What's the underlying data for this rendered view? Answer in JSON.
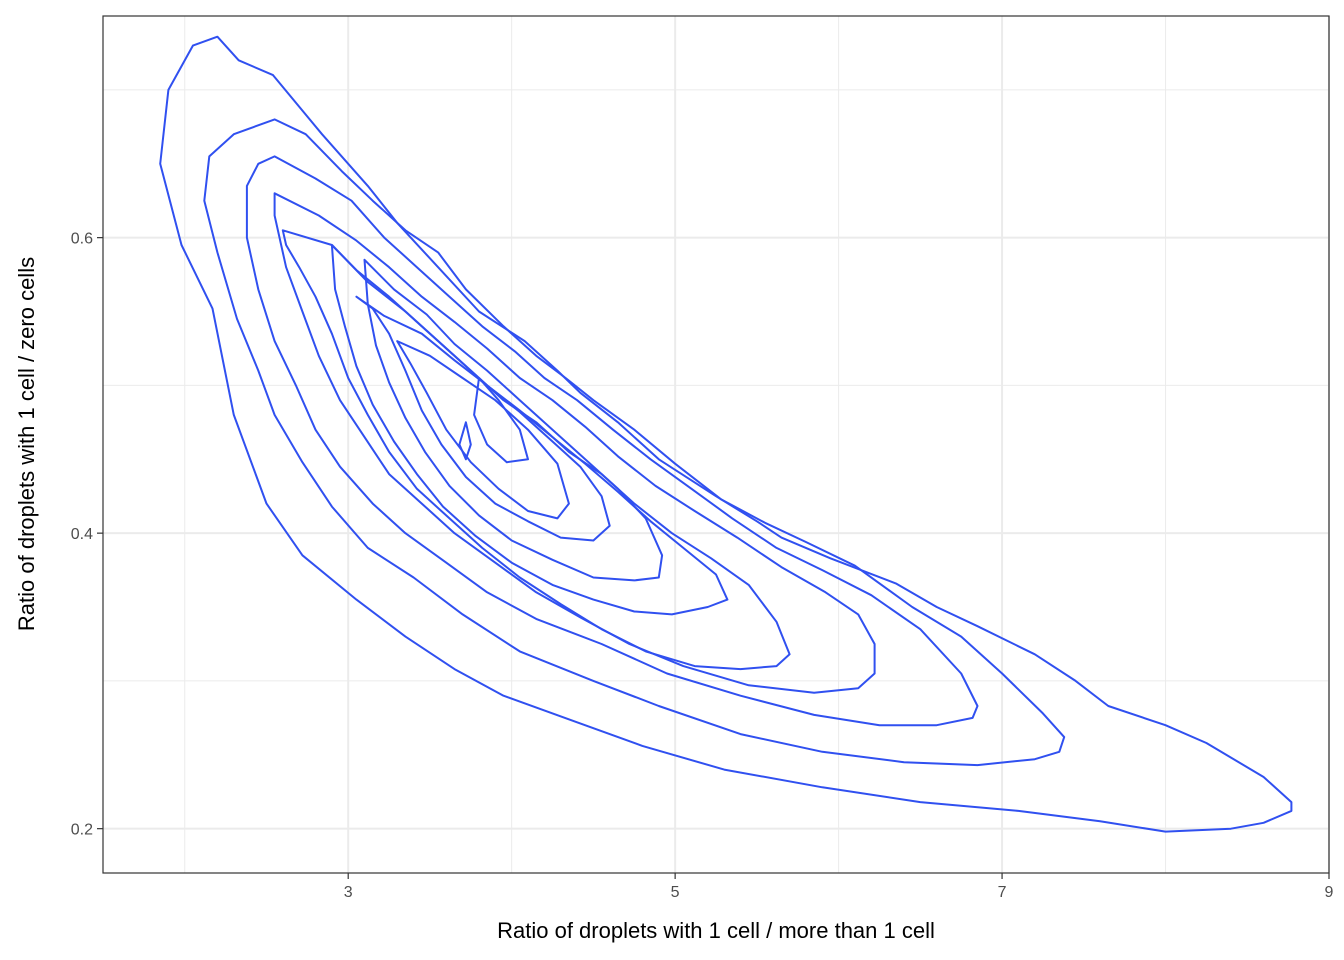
{
  "chart_data": {
    "type": "contour",
    "title": "",
    "xlabel": "Ratio of droplets with 1 cell / more than 1 cell",
    "ylabel": "Ratio of droplets with 1 cell / zero cells",
    "xlim": [
      1.5,
      9.0
    ],
    "ylim": [
      0.17,
      0.75
    ],
    "x_ticks": [
      3,
      5,
      7,
      9
    ],
    "x_tick_labels": [
      "3",
      "5",
      "7",
      "9"
    ],
    "y_ticks": [
      0.2,
      0.4,
      0.6
    ],
    "y_tick_labels": [
      "0.2",
      "0.4",
      "0.6"
    ],
    "x_minor_ticks": [
      2,
      4,
      6,
      8
    ],
    "y_minor_ticks": [
      0.3,
      0.5,
      0.7
    ],
    "grid": true,
    "line_color": "#3050f0",
    "contours": [
      [
        [
          2.2,
          0.736
        ],
        [
          2.33,
          0.72
        ],
        [
          2.54,
          0.71
        ],
        [
          2.84,
          0.67
        ],
        [
          3.12,
          0.635
        ],
        [
          3.3,
          0.61
        ],
        [
          3.55,
          0.58
        ],
        [
          3.8,
          0.55
        ],
        [
          4.08,
          0.53
        ],
        [
          4.28,
          0.51
        ],
        [
          4.42,
          0.495
        ],
        [
          4.65,
          0.475
        ],
        [
          4.9,
          0.45
        ],
        [
          5.25,
          0.425
        ],
        [
          5.5,
          0.408
        ],
        [
          5.65,
          0.397
        ],
        [
          5.95,
          0.383
        ],
        [
          6.35,
          0.366
        ],
        [
          6.6,
          0.35
        ],
        [
          6.85,
          0.337
        ],
        [
          7.2,
          0.318
        ],
        [
          7.45,
          0.3
        ],
        [
          7.65,
          0.283
        ],
        [
          8.0,
          0.27
        ],
        [
          8.25,
          0.258
        ],
        [
          8.6,
          0.235
        ],
        [
          8.77,
          0.218
        ],
        [
          8.77,
          0.212
        ],
        [
          8.6,
          0.204
        ],
        [
          8.4,
          0.2
        ],
        [
          8.0,
          0.198
        ],
        [
          7.6,
          0.205
        ],
        [
          7.1,
          0.212
        ],
        [
          6.5,
          0.218
        ],
        [
          5.9,
          0.228
        ],
        [
          5.3,
          0.24
        ],
        [
          4.8,
          0.256
        ],
        [
          4.4,
          0.272
        ],
        [
          3.95,
          0.29
        ],
        [
          3.65,
          0.308
        ],
        [
          3.35,
          0.33
        ],
        [
          3.05,
          0.355
        ],
        [
          2.72,
          0.385
        ],
        [
          2.5,
          0.42
        ],
        [
          2.3,
          0.48
        ],
        [
          2.17,
          0.552
        ],
        [
          1.98,
          0.595
        ],
        [
          1.85,
          0.65
        ],
        [
          1.9,
          0.7
        ],
        [
          2.05,
          0.73
        ],
        [
          2.2,
          0.736
        ]
      ],
      [
        [
          2.55,
          0.68
        ],
        [
          2.74,
          0.67
        ],
        [
          2.96,
          0.645
        ],
        [
          3.15,
          0.625
        ],
        [
          3.35,
          0.605
        ],
        [
          3.55,
          0.59
        ],
        [
          3.72,
          0.565
        ],
        [
          3.95,
          0.54
        ],
        [
          4.15,
          0.52
        ],
        [
          4.33,
          0.505
        ],
        [
          4.5,
          0.49
        ],
        [
          4.75,
          0.47
        ],
        [
          5.0,
          0.447
        ],
        [
          5.28,
          0.423
        ],
        [
          5.55,
          0.407
        ],
        [
          5.8,
          0.394
        ],
        [
          6.1,
          0.378
        ],
        [
          6.45,
          0.35
        ],
        [
          6.75,
          0.33
        ],
        [
          7.0,
          0.305
        ],
        [
          7.25,
          0.278
        ],
        [
          7.38,
          0.262
        ],
        [
          7.35,
          0.252
        ],
        [
          7.2,
          0.247
        ],
        [
          6.85,
          0.243
        ],
        [
          6.4,
          0.245
        ],
        [
          5.9,
          0.252
        ],
        [
          5.4,
          0.264
        ],
        [
          4.9,
          0.283
        ],
        [
          4.5,
          0.3
        ],
        [
          4.05,
          0.32
        ],
        [
          3.7,
          0.345
        ],
        [
          3.4,
          0.37
        ],
        [
          3.12,
          0.39
        ],
        [
          2.9,
          0.418
        ],
        [
          2.72,
          0.448
        ],
        [
          2.55,
          0.48
        ],
        [
          2.45,
          0.51
        ],
        [
          2.32,
          0.545
        ],
        [
          2.2,
          0.59
        ],
        [
          2.12,
          0.625
        ],
        [
          2.15,
          0.655
        ],
        [
          2.3,
          0.67
        ],
        [
          2.55,
          0.68
        ]
      ],
      [
        [
          2.55,
          0.655
        ],
        [
          2.8,
          0.64
        ],
        [
          3.02,
          0.625
        ],
        [
          3.22,
          0.6
        ],
        [
          3.42,
          0.58
        ],
        [
          3.62,
          0.56
        ],
        [
          3.82,
          0.54
        ],
        [
          4.02,
          0.523
        ],
        [
          4.2,
          0.505
        ],
        [
          4.4,
          0.49
        ],
        [
          4.62,
          0.47
        ],
        [
          4.85,
          0.45
        ],
        [
          5.1,
          0.43
        ],
        [
          5.35,
          0.41
        ],
        [
          5.62,
          0.39
        ],
        [
          5.9,
          0.375
        ],
        [
          6.2,
          0.358
        ],
        [
          6.5,
          0.335
        ],
        [
          6.75,
          0.305
        ],
        [
          6.85,
          0.283
        ],
        [
          6.82,
          0.275
        ],
        [
          6.6,
          0.27
        ],
        [
          6.25,
          0.27
        ],
        [
          5.85,
          0.277
        ],
        [
          5.4,
          0.29
        ],
        [
          4.95,
          0.305
        ],
        [
          4.55,
          0.325
        ],
        [
          4.15,
          0.342
        ],
        [
          3.85,
          0.36
        ],
        [
          3.6,
          0.38
        ],
        [
          3.35,
          0.4
        ],
        [
          3.15,
          0.42
        ],
        [
          2.95,
          0.445
        ],
        [
          2.8,
          0.47
        ],
        [
          2.68,
          0.5
        ],
        [
          2.55,
          0.53
        ],
        [
          2.45,
          0.565
        ],
        [
          2.38,
          0.6
        ],
        [
          2.38,
          0.635
        ],
        [
          2.45,
          0.65
        ],
        [
          2.55,
          0.655
        ]
      ],
      [
        [
          2.55,
          0.63
        ],
        [
          2.82,
          0.615
        ],
        [
          3.05,
          0.598
        ],
        [
          3.25,
          0.58
        ],
        [
          3.45,
          0.56
        ],
        [
          3.65,
          0.543
        ],
        [
          3.85,
          0.525
        ],
        [
          4.05,
          0.505
        ],
        [
          4.25,
          0.49
        ],
        [
          4.45,
          0.472
        ],
        [
          4.65,
          0.452
        ],
        [
          4.88,
          0.432
        ],
        [
          5.12,
          0.415
        ],
        [
          5.38,
          0.397
        ],
        [
          5.65,
          0.377
        ],
        [
          5.92,
          0.36
        ],
        [
          6.12,
          0.345
        ],
        [
          6.22,
          0.325
        ],
        [
          6.22,
          0.305
        ],
        [
          6.12,
          0.295
        ],
        [
          5.85,
          0.292
        ],
        [
          5.45,
          0.297
        ],
        [
          5.05,
          0.31
        ],
        [
          4.72,
          0.325
        ],
        [
          4.42,
          0.343
        ],
        [
          4.15,
          0.36
        ],
        [
          3.9,
          0.38
        ],
        [
          3.65,
          0.4
        ],
        [
          3.45,
          0.42
        ],
        [
          3.25,
          0.44
        ],
        [
          3.1,
          0.465
        ],
        [
          2.95,
          0.49
        ],
        [
          2.82,
          0.52
        ],
        [
          2.72,
          0.55
        ],
        [
          2.62,
          0.58
        ],
        [
          2.55,
          0.615
        ],
        [
          2.55,
          0.63
        ]
      ],
      [
        [
          2.6,
          0.605
        ],
        [
          2.9,
          0.595
        ],
        [
          3.12,
          0.57
        ],
        [
          3.35,
          0.55
        ],
        [
          3.55,
          0.53
        ],
        [
          3.75,
          0.51
        ],
        [
          3.95,
          0.49
        ],
        [
          4.15,
          0.475
        ],
        [
          4.35,
          0.455
        ],
        [
          4.55,
          0.44
        ],
        [
          4.75,
          0.42
        ],
        [
          4.98,
          0.4
        ],
        [
          5.22,
          0.383
        ],
        [
          5.45,
          0.365
        ],
        [
          5.62,
          0.34
        ],
        [
          5.7,
          0.318
        ],
        [
          5.62,
          0.31
        ],
        [
          5.4,
          0.308
        ],
        [
          5.12,
          0.31
        ],
        [
          4.82,
          0.32
        ],
        [
          4.55,
          0.335
        ],
        [
          4.3,
          0.352
        ],
        [
          4.05,
          0.37
        ],
        [
          3.82,
          0.39
        ],
        [
          3.62,
          0.41
        ],
        [
          3.42,
          0.43
        ],
        [
          3.25,
          0.455
        ],
        [
          3.12,
          0.48
        ],
        [
          3.0,
          0.505
        ],
        [
          2.9,
          0.535
        ],
        [
          2.8,
          0.56
        ],
        [
          2.7,
          0.58
        ],
        [
          2.62,
          0.595
        ],
        [
          2.6,
          0.605
        ]
      ],
      [
        [
          2.9,
          0.595
        ],
        [
          3.05,
          0.578
        ],
        [
          3.25,
          0.56
        ],
        [
          3.45,
          0.54
        ],
        [
          3.65,
          0.52
        ],
        [
          3.85,
          0.5
        ],
        [
          4.05,
          0.483
        ],
        [
          4.25,
          0.465
        ],
        [
          4.45,
          0.447
        ],
        [
          4.65,
          0.428
        ],
        [
          4.85,
          0.408
        ],
        [
          5.05,
          0.39
        ],
        [
          5.25,
          0.372
        ],
        [
          5.32,
          0.355
        ],
        [
          5.2,
          0.35
        ],
        [
          4.98,
          0.345
        ],
        [
          4.75,
          0.347
        ],
        [
          4.5,
          0.355
        ],
        [
          4.25,
          0.365
        ],
        [
          4.0,
          0.38
        ],
        [
          3.78,
          0.398
        ],
        [
          3.58,
          0.418
        ],
        [
          3.42,
          0.44
        ],
        [
          3.28,
          0.462
        ],
        [
          3.15,
          0.487
        ],
        [
          3.05,
          0.513
        ],
        [
          2.98,
          0.54
        ],
        [
          2.92,
          0.565
        ],
        [
          2.9,
          0.595
        ]
      ],
      [
        [
          3.1,
          0.585
        ],
        [
          3.28,
          0.565
        ],
        [
          3.48,
          0.548
        ],
        [
          3.65,
          0.528
        ],
        [
          3.85,
          0.51
        ],
        [
          4.05,
          0.49
        ],
        [
          4.25,
          0.47
        ],
        [
          4.45,
          0.45
        ],
        [
          4.65,
          0.43
        ],
        [
          4.82,
          0.41
        ],
        [
          4.92,
          0.385
        ],
        [
          4.9,
          0.37
        ],
        [
          4.75,
          0.368
        ],
        [
          4.5,
          0.37
        ],
        [
          4.25,
          0.382
        ],
        [
          4.0,
          0.395
        ],
        [
          3.8,
          0.412
        ],
        [
          3.62,
          0.432
        ],
        [
          3.47,
          0.455
        ],
        [
          3.35,
          0.478
        ],
        [
          3.25,
          0.502
        ],
        [
          3.17,
          0.527
        ],
        [
          3.12,
          0.555
        ],
        [
          3.1,
          0.585
        ]
      ],
      [
        [
          3.05,
          0.56
        ],
        [
          3.22,
          0.547
        ],
        [
          3.45,
          0.535
        ],
        [
          3.65,
          0.517
        ],
        [
          3.85,
          0.5
        ],
        [
          4.05,
          0.482
        ],
        [
          4.25,
          0.462
        ],
        [
          4.42,
          0.445
        ],
        [
          4.55,
          0.425
        ],
        [
          4.6,
          0.405
        ],
        [
          4.5,
          0.395
        ],
        [
          4.3,
          0.397
        ],
        [
          4.1,
          0.408
        ],
        [
          3.9,
          0.42
        ],
        [
          3.72,
          0.438
        ],
        [
          3.57,
          0.46
        ],
        [
          3.45,
          0.483
        ],
        [
          3.35,
          0.51
        ],
        [
          3.25,
          0.535
        ],
        [
          3.15,
          0.552
        ],
        [
          3.05,
          0.56
        ]
      ],
      [
        [
          3.3,
          0.53
        ],
        [
          3.5,
          0.52
        ],
        [
          3.7,
          0.505
        ],
        [
          3.9,
          0.49
        ],
        [
          4.1,
          0.47
        ],
        [
          4.28,
          0.447
        ],
        [
          4.35,
          0.42
        ],
        [
          4.28,
          0.41
        ],
        [
          4.1,
          0.415
        ],
        [
          3.92,
          0.43
        ],
        [
          3.75,
          0.448
        ],
        [
          3.6,
          0.47
        ],
        [
          3.48,
          0.495
        ],
        [
          3.38,
          0.515
        ],
        [
          3.3,
          0.53
        ]
      ],
      [
        [
          3.8,
          0.505
        ],
        [
          3.92,
          0.49
        ],
        [
          4.05,
          0.47
        ],
        [
          4.1,
          0.45
        ],
        [
          3.97,
          0.448
        ],
        [
          3.85,
          0.46
        ],
        [
          3.77,
          0.48
        ],
        [
          3.8,
          0.505
        ]
      ],
      [
        [
          3.72,
          0.475
        ],
        [
          3.75,
          0.46
        ],
        [
          3.72,
          0.45
        ],
        [
          3.68,
          0.46
        ],
        [
          3.72,
          0.475
        ]
      ]
    ]
  }
}
